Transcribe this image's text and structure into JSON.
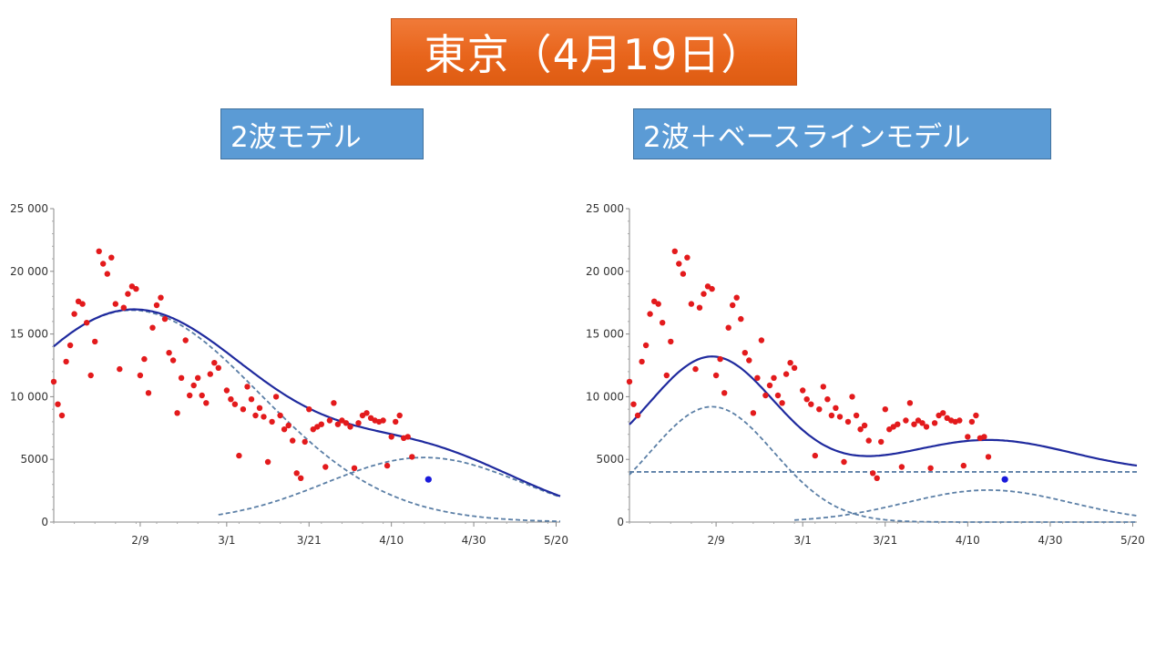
{
  "slide": {
    "title": "東京（4月19日）",
    "left_subtitle": "2波モデル",
    "right_subtitle": "2波＋ベースラインモデル"
  },
  "colors": {
    "observed": "#e31a1c",
    "latest": "#1a1adb",
    "fit_total": "#1f2a9e",
    "components": "#5b7fa6",
    "title_bg": "#e8651c",
    "subtitle_bg": "#5b9bd5"
  },
  "chart_data": [
    {
      "type": "scatter",
      "title": "2波モデル",
      "x_ticks": [
        "2/9",
        "3/1",
        "3/21",
        "4/10",
        "4/30",
        "5/20"
      ],
      "y_ticks": [
        "0",
        "5000",
        "10 000",
        "15 000",
        "20 000",
        "25 000"
      ],
      "xlim": [
        "1/19",
        "5/21"
      ],
      "ylim": [
        0,
        25000
      ],
      "series": [
        {
          "kind": "points",
          "x": [
            "1/19",
            "1/20",
            "1/21",
            "1/22",
            "1/23",
            "1/24",
            "1/25",
            "1/26",
            "1/27",
            "1/28",
            "1/29",
            "1/30",
            "1/31",
            "2/1",
            "2/2",
            "2/3",
            "2/4",
            "2/5",
            "2/6",
            "2/7",
            "2/8",
            "2/9",
            "2/10",
            "2/11",
            "2/12",
            "2/13",
            "2/14",
            "2/15",
            "2/16",
            "2/17",
            "2/18",
            "2/19",
            "2/20",
            "2/21",
            "2/22",
            "2/23",
            "2/24",
            "2/25",
            "2/26",
            "2/27",
            "2/28",
            "3/1",
            "3/2",
            "3/3",
            "3/4",
            "3/5",
            "3/6",
            "3/7",
            "3/8",
            "3/9",
            "3/10",
            "3/11",
            "3/12",
            "3/13",
            "3/14",
            "3/15",
            "3/16",
            "3/17",
            "3/18",
            "3/19",
            "3/20",
            "3/21",
            "3/22",
            "3/23",
            "3/24",
            "3/25",
            "3/26",
            "3/27",
            "3/28",
            "3/29",
            "3/30",
            "3/31",
            "4/1",
            "4/2",
            "4/3",
            "4/4",
            "4/5",
            "4/6",
            "4/7",
            "4/8",
            "4/9",
            "4/10",
            "4/11",
            "4/12",
            "4/13",
            "4/14",
            "4/15",
            "4/16",
            "4/17",
            "4/18"
          ],
          "y": [
            11200,
            9400,
            8500,
            12800,
            14100,
            16600,
            17600,
            17400,
            15900,
            11700,
            14400,
            21600,
            20600,
            19800,
            21100,
            17400,
            12200,
            17100,
            18200,
            18800,
            18600,
            11700,
            13000,
            10300,
            15500,
            17300,
            17900,
            16200,
            13500,
            12900,
            8700,
            11500,
            14500,
            10100,
            10900,
            11500,
            10100,
            9500,
            11800,
            12700,
            12300,
            10500,
            9800,
            9400,
            5300,
            9000,
            10800,
            9800,
            8500,
            9100,
            8400,
            4800,
            8000,
            10000,
            8500,
            7400,
            7700,
            6500,
            3900,
            3500,
            6400,
            9000,
            7400,
            7600,
            7800,
            4400,
            8100,
            9500,
            7800,
            8100,
            7900,
            7600,
            4300,
            7900,
            8500,
            8700,
            8300,
            8100,
            8000,
            8100,
            4500,
            6800,
            8000,
            8500,
            6700,
            6800,
            5200,
            null,
            null,
            null
          ]
        },
        {
          "kind": "latest_point",
          "x": [
            "4/19"
          ],
          "y": [
            3400
          ]
        },
        {
          "kind": "fit_total",
          "style": "solid"
        },
        {
          "kind": "component_wave_1",
          "style": "dashed"
        },
        {
          "kind": "component_wave_2",
          "style": "dashed"
        }
      ],
      "grid": false
    },
    {
      "type": "scatter",
      "title": "2波＋ベースラインモデル",
      "x_ticks": [
        "2/9",
        "3/1",
        "3/21",
        "4/10",
        "4/30",
        "5/20"
      ],
      "y_ticks": [
        "0",
        "5000",
        "10 000",
        "15 000",
        "20 000",
        "25 000"
      ],
      "xlim": [
        "1/19",
        "5/21"
      ],
      "ylim": [
        0,
        25000
      ],
      "series": [
        {
          "kind": "points",
          "same_as_left": true
        },
        {
          "kind": "latest_point",
          "x": [
            "4/19"
          ],
          "y": [
            3400
          ]
        },
        {
          "kind": "fit_total",
          "style": "solid"
        },
        {
          "kind": "component_wave_1",
          "style": "dashed"
        },
        {
          "kind": "component_wave_2",
          "style": "dashed"
        },
        {
          "kind": "baseline",
          "style": "dashed",
          "y": 4000
        }
      ],
      "grid": false
    }
  ]
}
